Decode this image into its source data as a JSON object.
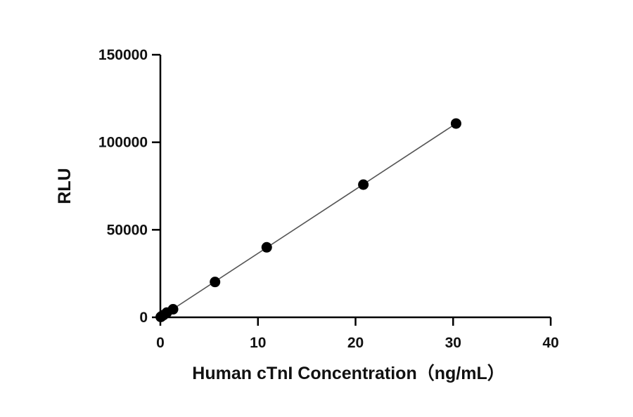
{
  "chart_data": {
    "type": "scatter",
    "xlabel": "Human cTnI Concentration（ng/mL）",
    "ylabel": "RLU",
    "xlim": [
      0,
      40
    ],
    "ylim": [
      0,
      150000
    ],
    "x_ticks": [
      0,
      10,
      20,
      30,
      40
    ],
    "y_ticks": [
      0,
      50000,
      100000,
      150000
    ],
    "x_tick_labels": [
      "0",
      "10",
      "20",
      "30",
      "40"
    ],
    "y_tick_labels": [
      "0",
      "50000",
      "100000",
      "150000"
    ],
    "grid": false,
    "legend": "none",
    "series": [
      {
        "x": [
          0.04,
          0.08,
          0.16,
          0.33,
          0.66,
          1.3,
          5.6,
          10.9,
          20.8,
          30.3
        ],
        "y": [
          200,
          400,
          700,
          1300,
          2700,
          4600,
          20200,
          40000,
          75800,
          110700
        ]
      }
    ],
    "fit_line": {
      "x": [
        0,
        30.3
      ],
      "y": [
        0,
        110700
      ]
    }
  },
  "colors": {
    "points": "#000000",
    "fit_line": "#555555",
    "axes": "#000000"
  }
}
